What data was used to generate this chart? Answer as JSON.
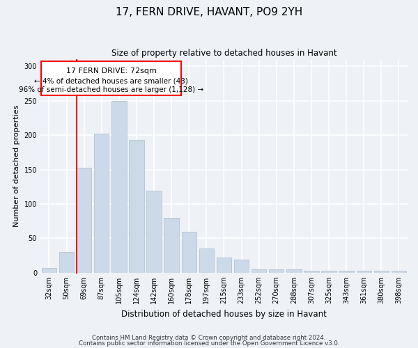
{
  "title1": "17, FERN DRIVE, HAVANT, PO9 2YH",
  "title2": "Size of property relative to detached houses in Havant",
  "xlabel": "Distribution of detached houses by size in Havant",
  "ylabel": "Number of detached properties",
  "categories": [
    "32sqm",
    "50sqm",
    "69sqm",
    "87sqm",
    "105sqm",
    "124sqm",
    "142sqm",
    "160sqm",
    "178sqm",
    "197sqm",
    "215sqm",
    "233sqm",
    "252sqm",
    "270sqm",
    "288sqm",
    "307sqm",
    "325sqm",
    "343sqm",
    "361sqm",
    "380sqm",
    "398sqm"
  ],
  "bar_heights": [
    7,
    30,
    153,
    202,
    250,
    193,
    119,
    80,
    60,
    35,
    22,
    19,
    5,
    5,
    5,
    3,
    3,
    3,
    3,
    3,
    3
  ],
  "bar_color": "#ccd9e8",
  "bar_edgecolor": "#aabcce",
  "vline_index": 2,
  "ylim": [
    0,
    310
  ],
  "yticks": [
    0,
    50,
    100,
    150,
    200,
    250,
    300
  ],
  "box_line1": "17 FERN DRIVE: 72sqm",
  "box_line2": "← 4% of detached houses are smaller (43)",
  "box_line3": "96% of semi-detached houses are larger (1,128) →",
  "footer1": "Contains HM Land Registry data © Crown copyright and database right 2024.",
  "footer2": "Contains public sector information licensed under the Open Government Licence v3.0.",
  "background_color": "#eef2f7"
}
